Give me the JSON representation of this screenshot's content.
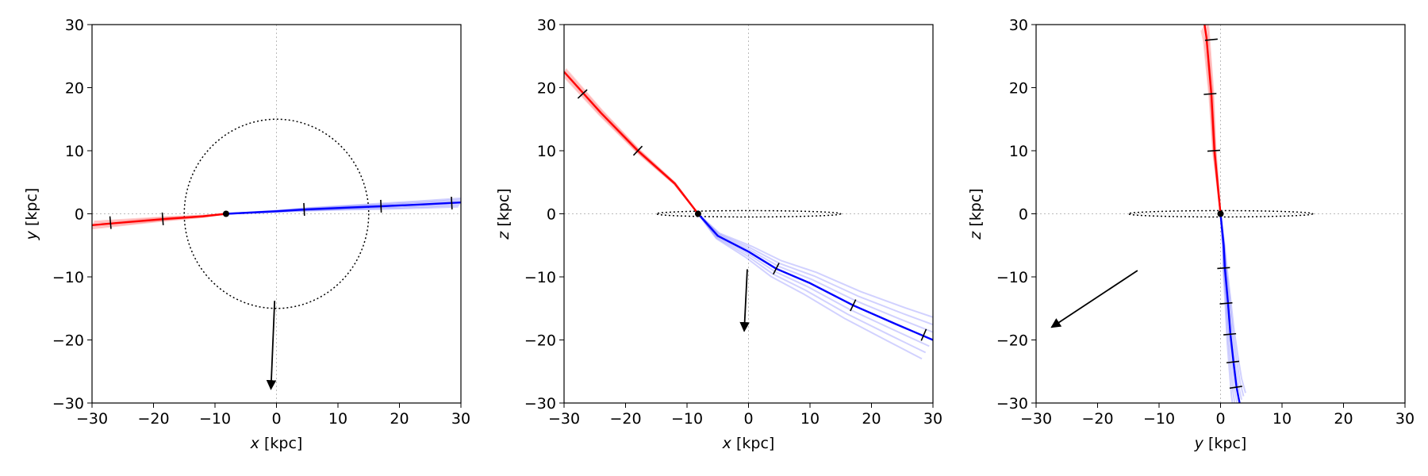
{
  "chart_data": [
    {
      "type": "line",
      "panel": "x-y projection",
      "xlabel": "x [kpc]",
      "ylabel": "y [kpc]",
      "xlabel_var": "x",
      "ylabel_var": "y",
      "unit": "[kpc]",
      "xlim": [
        -30,
        30
      ],
      "ylim": [
        -30,
        30
      ],
      "xticks": [
        -30,
        -20,
        -10,
        0,
        10,
        20,
        30
      ],
      "yticks": [
        -30,
        -20,
        -10,
        0,
        10,
        20,
        30
      ],
      "grid": "dotted zero lines",
      "current_position": [
        -8.2,
        0
      ],
      "past_track": {
        "color": "#ff0000",
        "points": [
          [
            -8.2,
            0
          ],
          [
            -12,
            -0.4
          ],
          [
            -18,
            -0.8
          ],
          [
            -24,
            -1.3
          ],
          [
            -30,
            -1.8
          ]
        ]
      },
      "future_track": {
        "color": "#0000ff",
        "points": [
          [
            -8.2,
            0
          ],
          [
            0,
            0.4
          ],
          [
            5,
            0.7
          ],
          [
            12,
            1.0
          ],
          [
            17,
            1.2
          ],
          [
            24,
            1.5
          ],
          [
            30,
            1.8
          ]
        ]
      },
      "past_markers": [
        [
          -27,
          -1.4
        ],
        [
          -18.5,
          -0.8
        ]
      ],
      "future_markers": [
        [
          4.5,
          0.7
        ],
        [
          17,
          1.2
        ],
        [
          28.5,
          1.7
        ]
      ],
      "disk": {
        "shape": "circle",
        "radius": 15
      },
      "velocity_arrow": {
        "from": [
          -0.3,
          -13.8
        ],
        "to": [
          -0.9,
          -27.8
        ]
      }
    },
    {
      "type": "line",
      "panel": "x-z projection",
      "xlabel": "x [kpc]",
      "ylabel": "z [kpc]",
      "xlabel_var": "x",
      "ylabel_var": "z",
      "unit": "[kpc]",
      "xlim": [
        -30,
        30
      ],
      "ylim": [
        -30,
        30
      ],
      "xticks": [
        -30,
        -20,
        -10,
        0,
        10,
        20,
        30
      ],
      "yticks": [
        -30,
        -20,
        -10,
        0,
        10,
        20,
        30
      ],
      "grid": "dotted zero lines",
      "current_position": [
        -8.2,
        0
      ],
      "past_track": {
        "color": "#ff0000",
        "points": [
          [
            -8.2,
            0
          ],
          [
            -12,
            4.8
          ],
          [
            -18,
            10
          ],
          [
            -24,
            16
          ],
          [
            -30,
            22.5
          ]
        ]
      },
      "future_track": {
        "color": "#0000ff",
        "points": [
          [
            -8.2,
            0
          ],
          [
            -5,
            -3.5
          ],
          [
            0,
            -6
          ],
          [
            4.5,
            -8.7
          ],
          [
            10,
            -11
          ],
          [
            17,
            -14.5
          ],
          [
            24,
            -17.5
          ],
          [
            30,
            -20
          ]
        ]
      },
      "past_markers": [
        [
          -27,
          19
        ],
        [
          -18,
          10
        ]
      ],
      "future_markers": [
        [
          4.5,
          -8.7
        ],
        [
          17,
          -14.5
        ],
        [
          28.5,
          -19.2
        ]
      ],
      "disk": {
        "shape": "ellipse",
        "rx": 15,
        "ry": 0.5
      },
      "velocity_arrow": {
        "from": [
          -0.2,
          -8.8
        ],
        "to": [
          -0.7,
          -18.6
        ]
      }
    },
    {
      "type": "line",
      "panel": "y-z projection",
      "xlabel": "y [kpc]",
      "ylabel": "z [kpc]",
      "xlabel_var": "y",
      "ylabel_var": "z",
      "unit": "[kpc]",
      "xlim": [
        -30,
        30
      ],
      "ylim": [
        -30,
        30
      ],
      "xticks": [
        -30,
        -20,
        -10,
        0,
        10,
        20,
        30
      ],
      "yticks": [
        -30,
        -20,
        -10,
        0,
        10,
        20,
        30
      ],
      "grid": "dotted zero lines",
      "current_position": [
        0,
        0
      ],
      "past_track": {
        "color": "#ff0000",
        "points": [
          [
            0,
            0
          ],
          [
            -0.5,
            5
          ],
          [
            -1,
            10
          ],
          [
            -1.5,
            19
          ],
          [
            -2.3,
            28
          ],
          [
            -2.6,
            30
          ]
        ]
      },
      "future_track": {
        "color": "#0000ff",
        "points": [
          [
            0,
            0
          ],
          [
            0.5,
            -5
          ],
          [
            0.7,
            -8.5
          ],
          [
            1.2,
            -14
          ],
          [
            1.6,
            -19
          ],
          [
            2.1,
            -23.5
          ],
          [
            2.6,
            -27.5
          ],
          [
            3.1,
            -30
          ]
        ]
      },
      "past_markers": [
        [
          -1.5,
          27.6
        ],
        [
          -1.7,
          19
        ],
        [
          -1.1,
          10
        ]
      ],
      "future_markers": [
        [
          0.5,
          -8.6
        ],
        [
          0.9,
          -14.2
        ],
        [
          1.5,
          -19.1
        ],
        [
          2,
          -23.5
        ],
        [
          2.5,
          -27.5
        ]
      ],
      "disk": {
        "shape": "ellipse",
        "rx": 15,
        "ry": 0.5
      },
      "velocity_arrow": {
        "from": [
          -13.5,
          -9
        ],
        "to": [
          -27.5,
          -18
        ]
      }
    }
  ]
}
